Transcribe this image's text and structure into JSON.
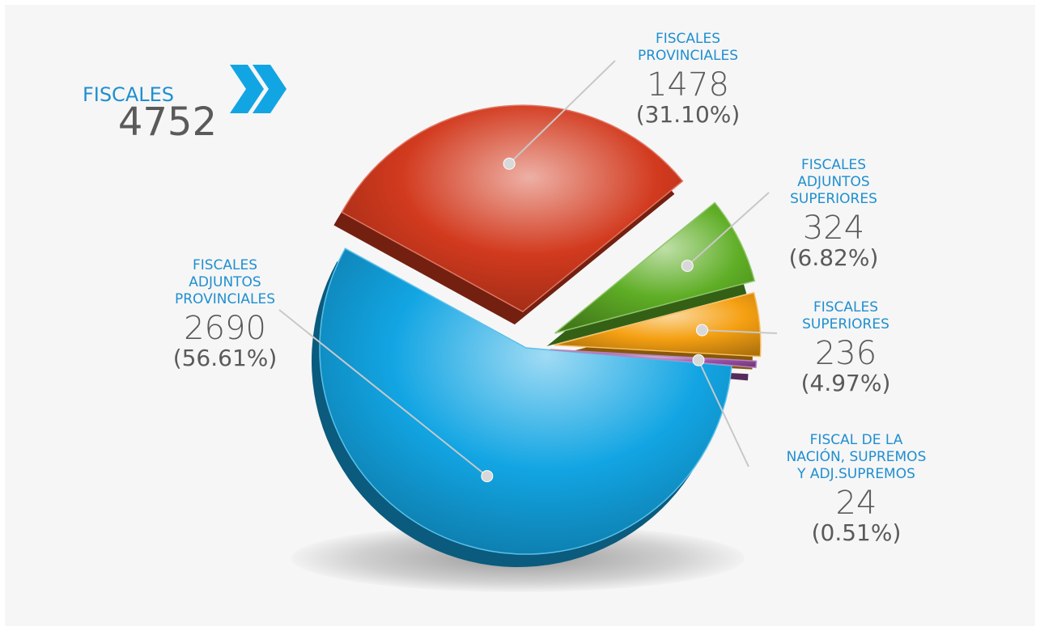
{
  "chart_data": {
    "type": "pie",
    "title": "FISCALES",
    "total": 4752,
    "categories": [
      [
        "FISCALES",
        "ADJUNTOS",
        "PROVINCIALES"
      ],
      [
        "FISCALES",
        "PROVINCIALES"
      ],
      [
        "FISCALES",
        "ADJUNTOS",
        "SUPERIORES"
      ],
      [
        "FISCALES",
        "SUPERIORES"
      ],
      [
        "FISCAL DE LA",
        "NACIÓN, SUPREMOS",
        "Y ADJ.SUPREMOS"
      ]
    ],
    "values": [
      2690,
      1478,
      324,
      236,
      24
    ],
    "percent_labels": [
      "(56.61%)",
      "(31.10%)",
      "(6.82%)",
      "(4.97%)",
      "(0.51%)"
    ],
    "colors": [
      "#12a5e3",
      "#d23a1e",
      "#5fae26",
      "#f5a012",
      "#9a4fa6"
    ]
  }
}
